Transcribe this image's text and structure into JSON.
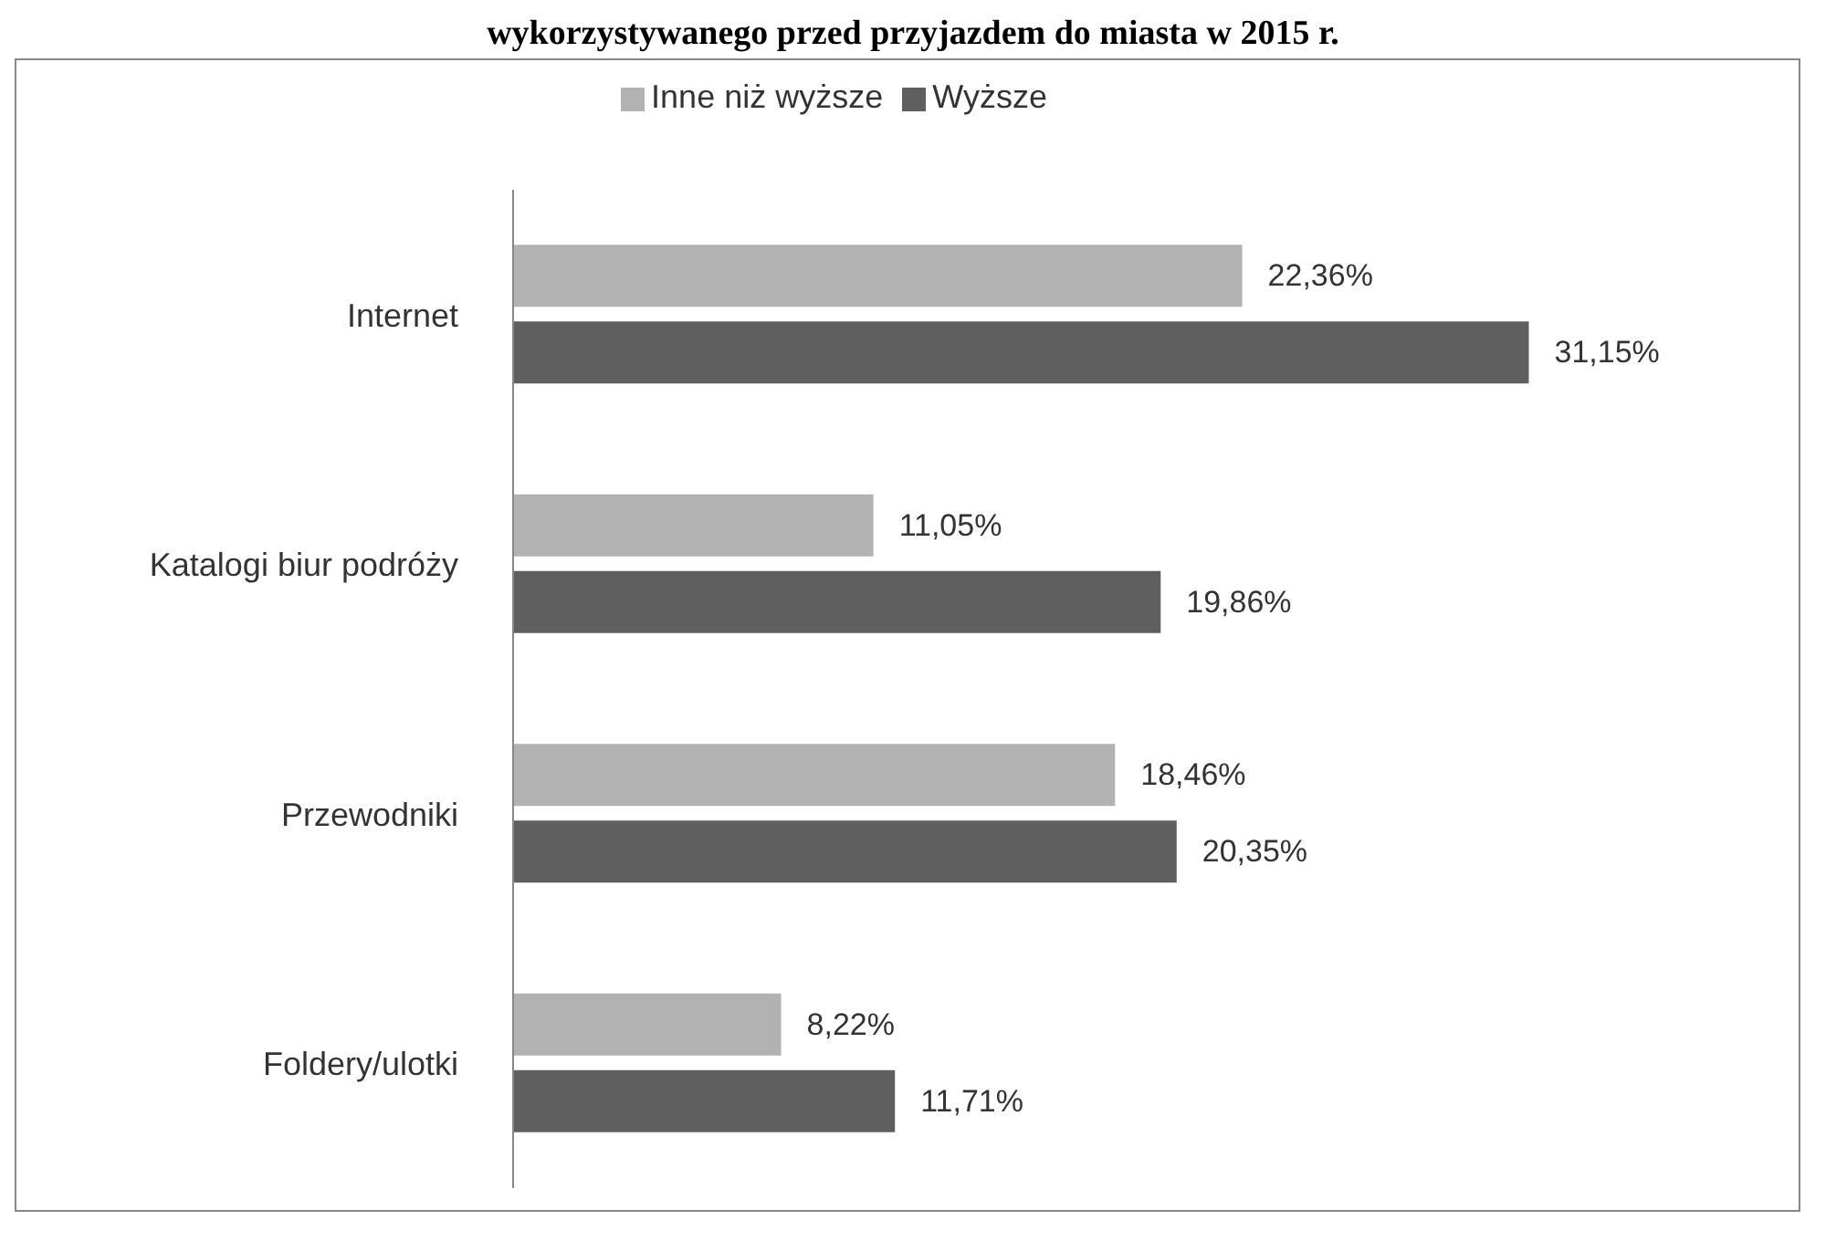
{
  "chart_data": {
    "type": "bar",
    "orientation": "horizontal",
    "title": "wykorzystywanego przed przyjazdem do miasta w 2015 r.",
    "categories": [
      "Internet",
      "Katalogi biur podróży",
      "Przewodniki",
      "Foldery/ulotki"
    ],
    "series": [
      {
        "name": "Inne niż wyższe",
        "color": "#b2b2b2",
        "values": [
          22.36,
          11.05,
          18.46,
          8.22
        ],
        "value_labels": [
          "22,36%",
          "11,05%",
          "18,46%",
          "8,22%"
        ]
      },
      {
        "name": "Wyższe",
        "color": "#5f5f5f",
        "values": [
          31.15,
          19.86,
          20.35,
          11.71
        ],
        "value_labels": [
          "31,15%",
          "19,86%",
          "20,35%",
          "11,71%"
        ]
      }
    ],
    "legend": "top"
  }
}
